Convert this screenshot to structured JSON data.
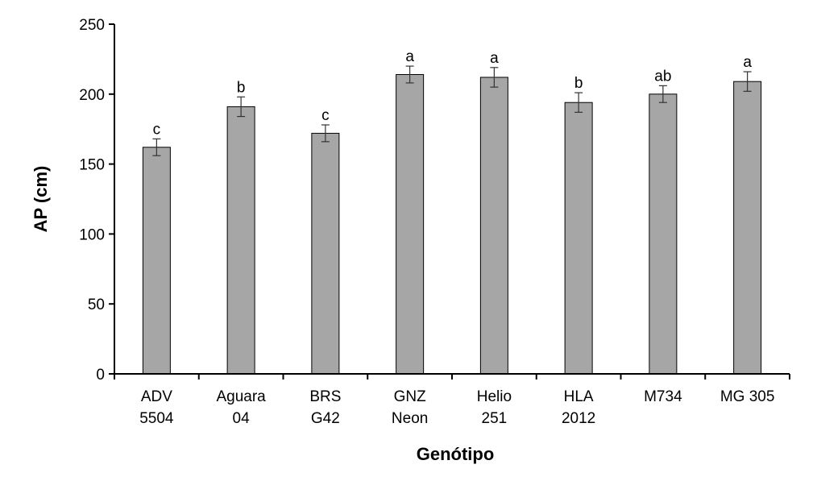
{
  "chart_data": {
    "type": "bar",
    "categories": [
      [
        "ADV",
        "5504"
      ],
      [
        "Aguara",
        "04"
      ],
      [
        "BRS",
        "G42"
      ],
      [
        "GNZ",
        "Neon"
      ],
      [
        "Helio",
        "251"
      ],
      [
        "HLA",
        "2012"
      ],
      [
        "M734"
      ],
      [
        "MG 305"
      ]
    ],
    "values": [
      162,
      191,
      172,
      214,
      212,
      194,
      200,
      209
    ],
    "errors": [
      6,
      7,
      6,
      6,
      7,
      7,
      6,
      7
    ],
    "letters": [
      "c",
      "b",
      "c",
      "a",
      "a",
      "b",
      "ab",
      "a"
    ],
    "xlabel": "Genótipo",
    "ylabel": "AP (cm)",
    "ylim": [
      0,
      250
    ],
    "yticks": [
      0,
      50,
      100,
      150,
      200,
      250
    ],
    "grid": false,
    "colors": {
      "bar": "#a6a6a6",
      "outline": "#000000"
    }
  }
}
